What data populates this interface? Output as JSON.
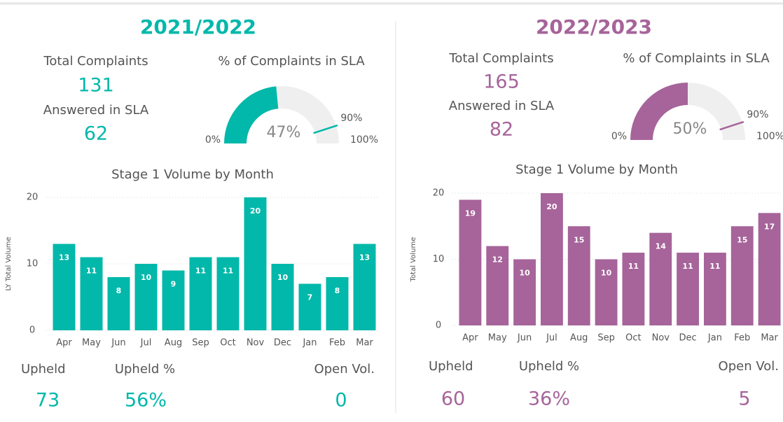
{
  "panels": [
    {
      "title": "2021/2022",
      "color": "#01b8aa",
      "kpis": [
        {
          "label": "Total Complaints",
          "value": "131"
        },
        {
          "label": "Answered in SLA",
          "value": "62"
        }
      ],
      "footer": [
        {
          "label": "Upheld",
          "value": "73"
        },
        {
          "label": "Upheld %",
          "value": "56%"
        },
        {
          "label": "Open Vol.",
          "value": "0"
        }
      ]
    },
    {
      "title": "2022/2023",
      "color": "#a6649a",
      "kpis": [
        {
          "label": "Total Complaints",
          "value": "165"
        },
        {
          "label": "Answered in SLA",
          "value": "82"
        }
      ],
      "footer": [
        {
          "label": "Upheld",
          "value": "60"
        },
        {
          "label": "Upheld %",
          "value": "36%"
        },
        {
          "label": "Open Vol.",
          "value": "5"
        }
      ]
    }
  ],
  "chart_data": [
    {
      "type": "gauge",
      "title": "% of Complaints in SLA",
      "value": 47,
      "value_label": "47%",
      "color": "#01b8aa",
      "min": {
        "value": 0,
        "label": "0%"
      },
      "max": {
        "value": 100,
        "label": "100%"
      },
      "target": {
        "value": 90,
        "label": "90%"
      }
    },
    {
      "type": "bar",
      "title": "Stage 1 Volume by Month",
      "y_label": "LY Total Volume",
      "color": "#01b8aa",
      "categories": [
        "Apr",
        "May",
        "Jun",
        "Jul",
        "Aug",
        "Sep",
        "Oct",
        "Nov",
        "Dec",
        "Jan",
        "Feb",
        "Mar"
      ],
      "values": [
        13,
        11,
        8,
        10,
        9,
        11,
        11,
        20,
        10,
        7,
        8,
        13
      ],
      "ylim": [
        0,
        20
      ],
      "yticks": [
        0,
        10,
        20
      ],
      "grid": true
    },
    {
      "type": "gauge",
      "title": "% of Complaints in SLA",
      "value": 50,
      "value_label": "50%",
      "color": "#a6649a",
      "min": {
        "value": 0,
        "label": "0%"
      },
      "max": {
        "value": 100,
        "label": "100%"
      },
      "target": {
        "value": 90,
        "label": "90%"
      }
    },
    {
      "type": "bar",
      "title": "Stage 1 Volume by Month",
      "y_label": "Total Volume",
      "color": "#a6649a",
      "categories": [
        "Apr",
        "May",
        "Jun",
        "Jul",
        "Aug",
        "Sep",
        "Oct",
        "Nov",
        "Dec",
        "Jan",
        "Feb",
        "Mar"
      ],
      "values": [
        19,
        12,
        10,
        20,
        15,
        10,
        11,
        14,
        11,
        11,
        15,
        17
      ],
      "ylim": [
        0,
        20
      ],
      "yticks": [
        0,
        10,
        20
      ],
      "grid": true
    }
  ]
}
